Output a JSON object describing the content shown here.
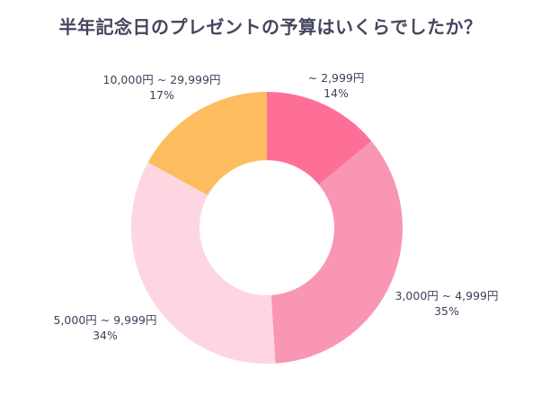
{
  "chart_data": {
    "type": "pie",
    "title": "半年記念日のプレゼントの予算はいくらでしたか？",
    "donut": true,
    "slices": [
      {
        "label": "~ 2,999円",
        "value": 14,
        "value_label": "14%",
        "color": "#fe6f98"
      },
      {
        "label": "3,000円 ~ 4,999円",
        "value": 35,
        "value_label": "35%",
        "color": "#f996b4"
      },
      {
        "label": "5,000円 ~ 9,999円",
        "value": 34,
        "value_label": "34%",
        "color": "#fed6e2"
      },
      {
        "label": "10,000円 ~ 29,999円",
        "value": 17,
        "value_label": "17%",
        "color": "#fdbd5e"
      }
    ]
  }
}
